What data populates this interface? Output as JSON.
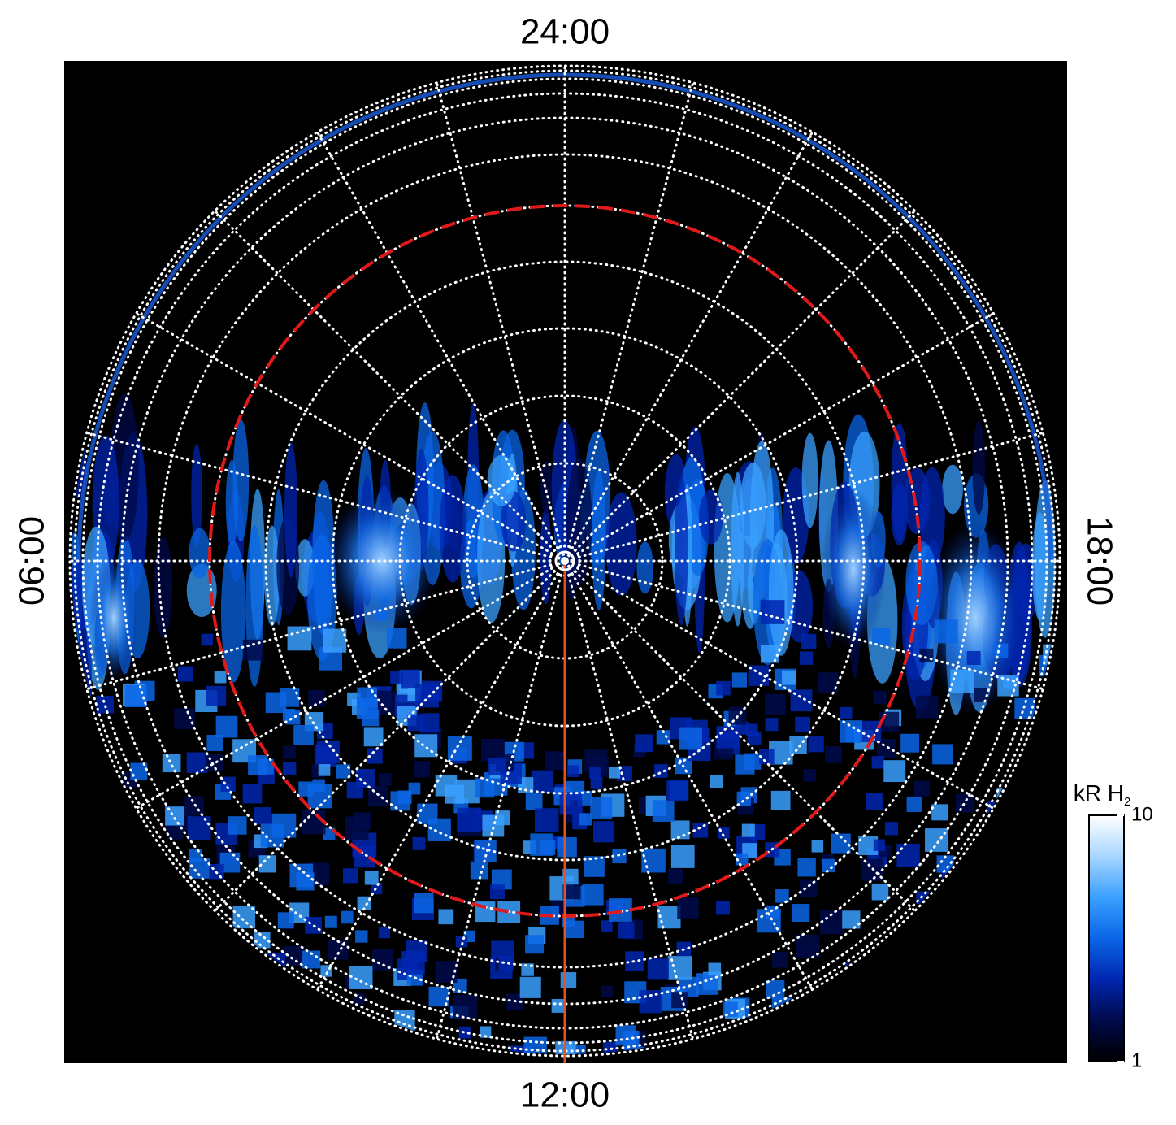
{
  "chart_data": {
    "type": "polar-image",
    "local_time_labels": {
      "top": "24:00",
      "left": "06:00",
      "right": "18:00",
      "bottom": "12:00"
    },
    "colorbar": {
      "title": "kR H",
      "title_subscript": "2",
      "log": true,
      "clim": [
        1,
        10
      ],
      "ticks": [
        1,
        10
      ],
      "colors": [
        "#000000",
        "#000a4a",
        "#0026b0",
        "#0a66e6",
        "#3aa0ff",
        "#a8d6ff",
        "#ffffff"
      ]
    }
  }
}
